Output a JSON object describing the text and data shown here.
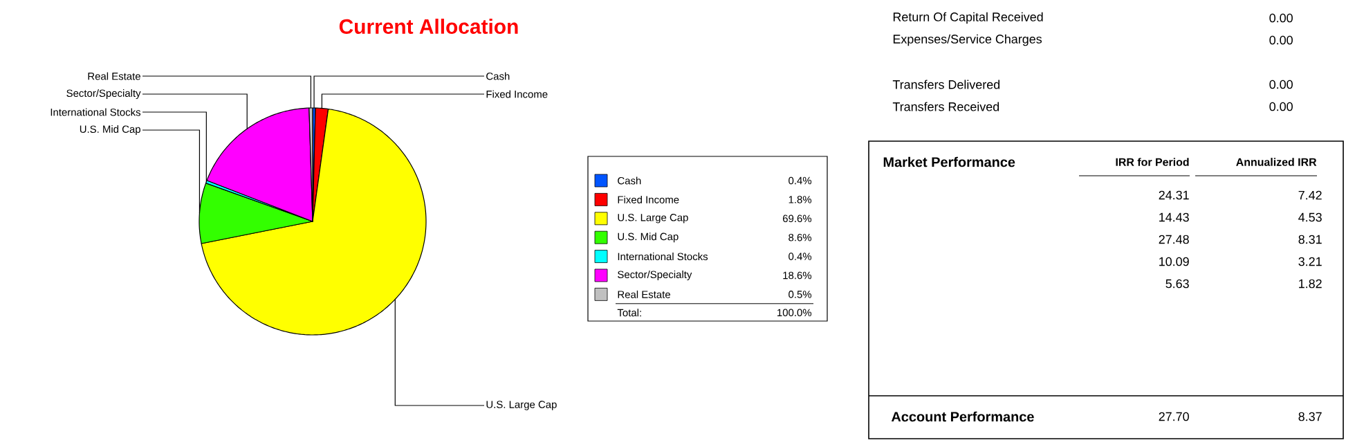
{
  "chart_data": [
    {
      "type": "pie",
      "title": "Current Allocation",
      "categories": [
        "Cash",
        "Fixed Income",
        "U.S. Large Cap",
        "U.S. Mid Cap",
        "International Stocks",
        "Sector/Specialty",
        "Real Estate"
      ],
      "values": [
        0.4,
        1.8,
        69.6,
        8.6,
        0.4,
        18.6,
        0.5
      ],
      "colors": [
        "#0055ff",
        "#ff0000",
        "#ffff00",
        "#33ff00",
        "#00ffff",
        "#ff00ff",
        "#c0c0c0"
      ],
      "value_labels": [
        "0.4%",
        "1.8%",
        "69.6%",
        "8.6%",
        "0.4%",
        "18.6%",
        "0.5%"
      ],
      "legend": "right",
      "annotations": [
        "Total:",
        "100.0%"
      ]
    },
    {
      "type": "other",
      "annotations": [
        "Return Of Capital Received",
        "0.00",
        "Expenses/Service Charges",
        "0.00",
        "Transfers Delivered",
        "0.00",
        "Transfers Received",
        "0.00",
        "Market Performance",
        "IRR for Period",
        "Annualized IRR",
        "24.31",
        "7.42",
        "14.43",
        "4.53",
        "27.48",
        "8.31",
        "10.09",
        "3.21",
        "5.63",
        "1.82",
        "Account Performance",
        "27.70",
        "8.37"
      ]
    }
  ]
}
